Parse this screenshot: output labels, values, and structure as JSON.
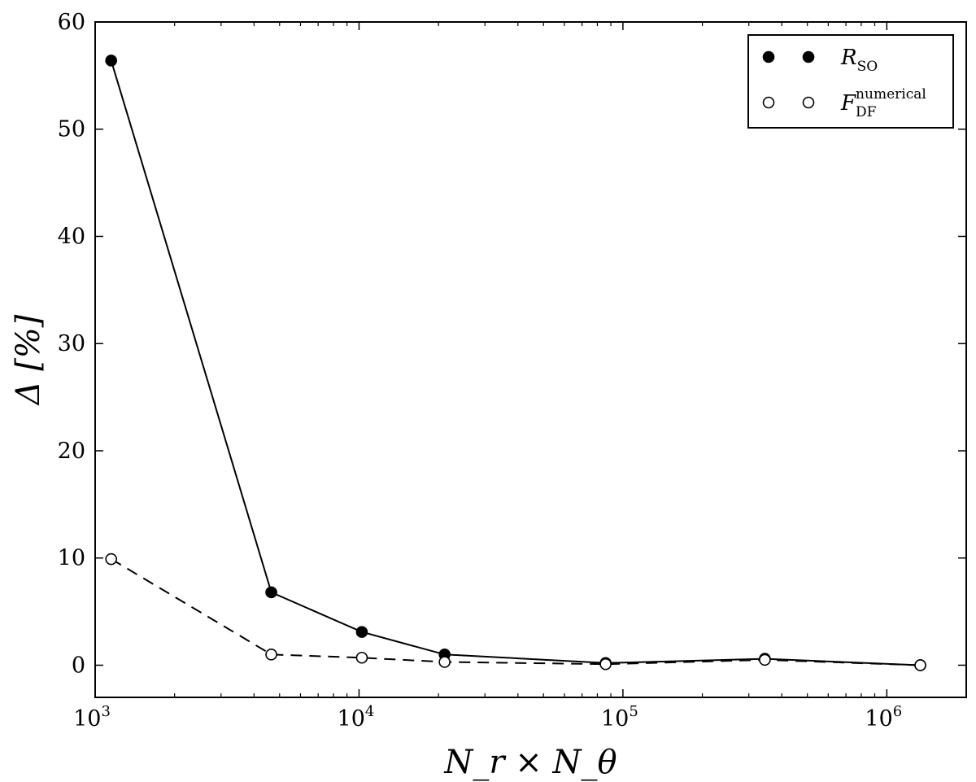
{
  "chart_data": {
    "type": "line",
    "xscale": "log",
    "xlim": [
      1000,
      2000000
    ],
    "ylim": [
      -3,
      60
    ],
    "xlabel": "N_r × N_θ",
    "ylabel": "Δ [%]",
    "xticks": [
      {
        "value": 1000,
        "base": "10",
        "exp": "3"
      },
      {
        "value": 10000,
        "base": "10",
        "exp": "4"
      },
      {
        "value": 100000,
        "base": "10",
        "exp": "5"
      },
      {
        "value": 1000000,
        "base": "10",
        "exp": "6"
      }
    ],
    "yticks": [
      {
        "value": 0,
        "label": "0"
      },
      {
        "value": 10,
        "label": "10"
      },
      {
        "value": 20,
        "label": "20"
      },
      {
        "value": 30,
        "label": "30"
      },
      {
        "value": 40,
        "label": "40"
      },
      {
        "value": 50,
        "label": "50"
      },
      {
        "value": 60,
        "label": "60"
      }
    ],
    "legend_position": "top-right",
    "series": [
      {
        "name": "R_SO",
        "legend": {
          "main": "R",
          "sub": "SO",
          "sup": ""
        },
        "marker": "filled-circle",
        "line": "solid",
        "x": [
          1150,
          4650,
          10250,
          21100,
          86000,
          345000,
          1340000
        ],
        "y": [
          56.4,
          6.8,
          3.1,
          1.0,
          0.2,
          0.6,
          0.0
        ]
      },
      {
        "name": "F_DF^numerical",
        "legend": {
          "main": "F",
          "sub": "DF",
          "sup": "numerical"
        },
        "marker": "open-circle",
        "line": "dashed",
        "x": [
          1150,
          4650,
          10250,
          21100,
          86000,
          345000,
          1340000
        ],
        "y": [
          9.9,
          1.0,
          0.7,
          0.3,
          0.1,
          0.5,
          0.0
        ]
      }
    ]
  }
}
